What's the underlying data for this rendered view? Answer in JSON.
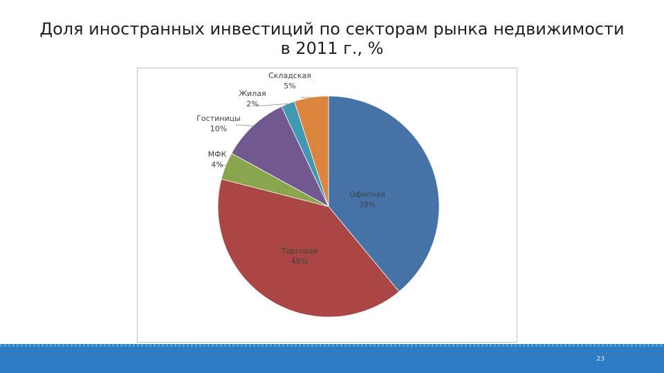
{
  "slide": {
    "title_line1": "Доля иностранных инвестиций по секторам рынка недвижимости",
    "title_line2": "в 2011 г., %",
    "page_number": "23"
  },
  "chart_data": {
    "type": "pie",
    "title": "Доля иностранных инвестиций по секторам рынка недвижимости в 2011 г., %",
    "legend": "none",
    "slices": [
      {
        "label": "Офисная",
        "value": 39,
        "value_label": "39%",
        "color": "#4572a7"
      },
      {
        "label": "Торговая",
        "value": 40,
        "value_label": "40%",
        "color": "#aa4643"
      },
      {
        "label": "МФК",
        "value": 4,
        "value_label": "4%",
        "color": "#89a54e"
      },
      {
        "label": "Гостиницы",
        "value": 10,
        "value_label": "10%",
        "color": "#71588f"
      },
      {
        "label": "Жилая",
        "value": 2,
        "value_label": "2%",
        "color": "#4198af"
      },
      {
        "label": "Складская",
        "value": 5,
        "value_label": "5%",
        "color": "#db843d"
      }
    ]
  }
}
